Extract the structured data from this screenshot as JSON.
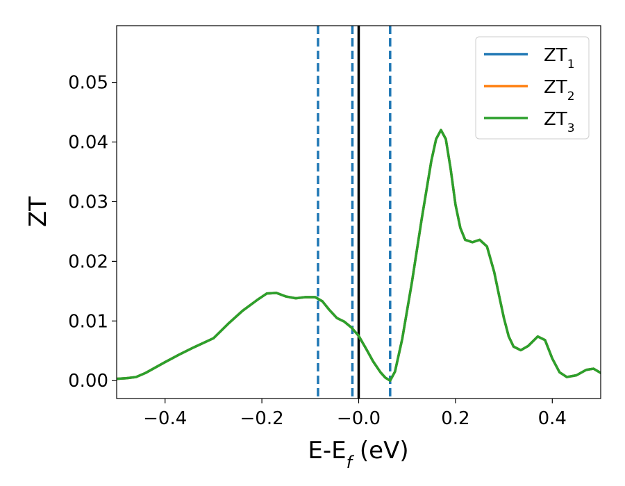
{
  "chart_data": {
    "type": "line",
    "title": "",
    "xlabel": "E-E",
    "xlabel_sub": "f",
    "xlabel_unit": " (eV)",
    "ylabel": "ZT",
    "xlim": [
      -0.5,
      0.5
    ],
    "ylim": [
      -0.003,
      0.0595
    ],
    "xticks": [
      -0.4,
      -0.2,
      0.0,
      0.2,
      0.4
    ],
    "xtick_labels": [
      "−0.4",
      "−0.2",
      "−0.0",
      "0.2",
      "0.4"
    ],
    "yticks": [
      0.0,
      0.01,
      0.02,
      0.03,
      0.04,
      0.05
    ],
    "ytick_labels": [
      "0.00",
      "0.01",
      "0.02",
      "0.03",
      "0.04",
      "0.05"
    ],
    "grid": false,
    "legend_position": "top-right",
    "vertical_lines": [
      {
        "x": -0.084,
        "style": "dashed",
        "color": "#1f77b4"
      },
      {
        "x": -0.013,
        "style": "dashed",
        "color": "#1f77b4"
      },
      {
        "x": 0.065,
        "style": "dashed",
        "color": "#1f77b4"
      },
      {
        "x": 0.0,
        "style": "solid",
        "color": "#000000"
      }
    ],
    "x": [
      -0.5,
      -0.48,
      -0.46,
      -0.44,
      -0.42,
      -0.4,
      -0.37,
      -0.34,
      -0.3,
      -0.27,
      -0.24,
      -0.21,
      -0.19,
      -0.17,
      -0.15,
      -0.13,
      -0.11,
      -0.09,
      -0.075,
      -0.06,
      -0.045,
      -0.03,
      -0.015,
      0.0,
      0.015,
      0.03,
      0.045,
      0.055,
      0.065,
      0.075,
      0.09,
      0.11,
      0.13,
      0.15,
      0.16,
      0.17,
      0.18,
      0.19,
      0.2,
      0.21,
      0.22,
      0.235,
      0.25,
      0.265,
      0.28,
      0.29,
      0.3,
      0.31,
      0.32,
      0.335,
      0.35,
      0.37,
      0.385,
      0.4,
      0.415,
      0.43,
      0.45,
      0.47,
      0.485,
      0.5
    ],
    "series": [
      {
        "name": "ZT",
        "name_sub": "1",
        "color": "#1f77b4",
        "values": [
          0.0003,
          0.0004,
          0.0006,
          0.0013,
          0.0022,
          0.0031,
          0.0044,
          0.0056,
          0.0071,
          0.0095,
          0.0117,
          0.0135,
          0.0146,
          0.0147,
          0.0141,
          0.0138,
          0.014,
          0.014,
          0.0133,
          0.0118,
          0.0105,
          0.0099,
          0.0089,
          0.0075,
          0.0054,
          0.0032,
          0.0014,
          0.0005,
          0.0,
          0.0015,
          0.007,
          0.0165,
          0.027,
          0.0368,
          0.0405,
          0.042,
          0.0405,
          0.0355,
          0.0295,
          0.0256,
          0.0236,
          0.0232,
          0.0236,
          0.0225,
          0.0182,
          0.0143,
          0.0105,
          0.0074,
          0.0057,
          0.0051,
          0.0058,
          0.0074,
          0.0068,
          0.0037,
          0.0014,
          0.0006,
          0.0009,
          0.0018,
          0.002,
          0.0013
        ]
      },
      {
        "name": "ZT",
        "name_sub": "2",
        "color": "#ff7f0e",
        "values": [
          0.0003,
          0.0004,
          0.0006,
          0.0013,
          0.0022,
          0.0031,
          0.0044,
          0.0056,
          0.0071,
          0.0095,
          0.0117,
          0.0135,
          0.0146,
          0.0147,
          0.0141,
          0.0138,
          0.014,
          0.014,
          0.0133,
          0.0118,
          0.0105,
          0.0099,
          0.0089,
          0.0075,
          0.0054,
          0.0032,
          0.0014,
          0.0005,
          0.0,
          0.0015,
          0.007,
          0.0165,
          0.027,
          0.0368,
          0.0405,
          0.042,
          0.0405,
          0.0355,
          0.0295,
          0.0256,
          0.0236,
          0.0232,
          0.0236,
          0.0225,
          0.0182,
          0.0143,
          0.0105,
          0.0074,
          0.0057,
          0.0051,
          0.0058,
          0.0074,
          0.0068,
          0.0037,
          0.0014,
          0.0006,
          0.0009,
          0.0018,
          0.002,
          0.0013
        ]
      },
      {
        "name": "ZT",
        "name_sub": "3",
        "color": "#2ca02c",
        "values": [
          0.0003,
          0.0004,
          0.0006,
          0.0013,
          0.0022,
          0.0031,
          0.0044,
          0.0056,
          0.0071,
          0.0095,
          0.0117,
          0.0135,
          0.0146,
          0.0147,
          0.0141,
          0.0138,
          0.014,
          0.014,
          0.0133,
          0.0118,
          0.0105,
          0.0099,
          0.0089,
          0.0075,
          0.0054,
          0.0032,
          0.0014,
          0.0005,
          0.0,
          0.0015,
          0.007,
          0.0165,
          0.027,
          0.0368,
          0.0405,
          0.042,
          0.0405,
          0.0355,
          0.0295,
          0.0256,
          0.0236,
          0.0232,
          0.0236,
          0.0225,
          0.0182,
          0.0143,
          0.0105,
          0.0074,
          0.0057,
          0.0051,
          0.0058,
          0.0074,
          0.0068,
          0.0037,
          0.0014,
          0.0006,
          0.0009,
          0.0018,
          0.002,
          0.0013
        ]
      }
    ]
  }
}
